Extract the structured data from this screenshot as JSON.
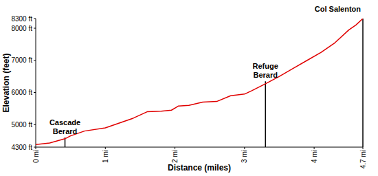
{
  "chart_data": {
    "type": "area_line",
    "x_label": "Distance (miles)",
    "y_label": "Elevation (feet)",
    "x": [
      0,
      0.2,
      0.42,
      0.5,
      0.7,
      1.0,
      1.2,
      1.4,
      1.6,
      1.8,
      1.95,
      2.05,
      2.2,
      2.4,
      2.6,
      2.8,
      3.0,
      3.1,
      3.3,
      3.5,
      3.7,
      3.9,
      4.1,
      4.3,
      4.5,
      4.6,
      4.7
    ],
    "values": [
      4380,
      4430,
      4560,
      4650,
      4800,
      4900,
      5050,
      5200,
      5400,
      5420,
      5450,
      5580,
      5600,
      5700,
      5720,
      5900,
      5950,
      6050,
      6270,
      6500,
      6750,
      7000,
      7250,
      7550,
      7950,
      8100,
      8300
    ],
    "color": "#e00000",
    "xlim": [
      0,
      4.7
    ],
    "ylim": [
      4300,
      8300
    ],
    "xticks": [
      {
        "value": 0,
        "label": "0 mi"
      },
      {
        "value": 1,
        "label": "1 mi"
      },
      {
        "value": 2,
        "label": "2 mi"
      },
      {
        "value": 3,
        "label": "3 mi"
      },
      {
        "value": 4,
        "label": "4 mi"
      },
      {
        "value": 4.7,
        "label": "4.7 mi"
      }
    ],
    "yticks": [
      {
        "value": 4300,
        "label": "4300 ft"
      },
      {
        "value": 5000,
        "label": "5000 ft"
      },
      {
        "value": 6000,
        "label": "6000 ft"
      },
      {
        "value": 7000,
        "label": "7000 ft"
      },
      {
        "value": 8000,
        "label": "8000 ft"
      },
      {
        "value": 8300,
        "label": "8300 ft"
      }
    ],
    "grid": false,
    "annotations": [
      {
        "text": "Cascade Berard",
        "x": 0.42,
        "y": 4600
      },
      {
        "text": "Refuge Berard",
        "x": 3.3,
        "y": 6350
      },
      {
        "text": "Col Salenton",
        "x": 4.7,
        "y": 8300
      }
    ]
  }
}
